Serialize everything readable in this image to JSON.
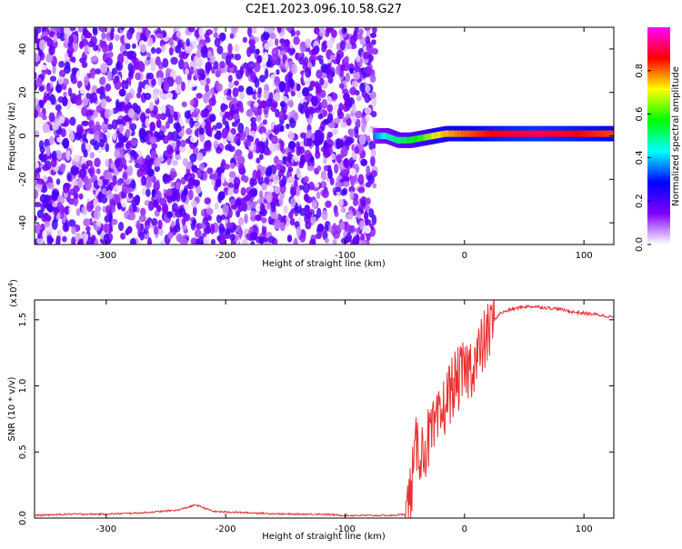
{
  "title": "C2E1.2023.096.10.58.G27",
  "chart_data": [
    {
      "type": "heatmap",
      "xlabel": "Height of straight line (km)",
      "ylabel": "Frequency (Hz)",
      "xlim": [
        -360,
        125
      ],
      "ylim": [
        -50,
        50
      ],
      "x_ticks": [
        -300,
        -200,
        -100,
        0,
        100
      ],
      "y_ticks": [
        -40,
        -20,
        0,
        20,
        40
      ],
      "colorbar": {
        "label": "Normalized spectral amplitude",
        "range": [
          0.0,
          1.0
        ],
        "ticks": [
          0.0,
          0.2,
          0.4,
          0.6,
          0.8
        ],
        "colors": [
          "#ffffff",
          "#8000ff",
          "#0000ff",
          "#00ffff",
          "#00ff00",
          "#ffff00",
          "#ff0000",
          "#ff00ff"
        ]
      },
      "features": {
        "noise_region_x": [
          -360,
          -75
        ],
        "signal_region_x": [
          -75,
          125
        ],
        "signal_trace": [
          {
            "x": -75,
            "y": 0,
            "amp": 0.35
          },
          {
            "x": -65,
            "y": 0,
            "amp": 0.45
          },
          {
            "x": -55,
            "y": -2,
            "amp": 0.5
          },
          {
            "x": -45,
            "y": -2,
            "amp": 0.55
          },
          {
            "x": -35,
            "y": -1,
            "amp": 0.6
          },
          {
            "x": -25,
            "y": 0,
            "amp": 0.7
          },
          {
            "x": -15,
            "y": 1,
            "amp": 0.75
          },
          {
            "x": 0,
            "y": 1,
            "amp": 0.8
          },
          {
            "x": 20,
            "y": 1,
            "amp": 0.85
          },
          {
            "x": 40,
            "y": 1,
            "amp": 0.88
          },
          {
            "x": 60,
            "y": 1,
            "amp": 0.9
          },
          {
            "x": 80,
            "y": 1,
            "amp": 0.88
          },
          {
            "x": 100,
            "y": 1,
            "amp": 0.85
          },
          {
            "x": 125,
            "y": 1,
            "amp": 0.82
          }
        ]
      }
    },
    {
      "type": "line",
      "xlabel": "Height of straight line (km)",
      "ylabel": "SNR (10 * v/v)",
      "y_multiplier": "(x10",
      "y_multiplier_exp": "4",
      "y_multiplier_close": ")",
      "xlim": [
        -360,
        125
      ],
      "ylim": [
        0,
        1.65
      ],
      "x_ticks": [
        -300,
        -200,
        -100,
        0,
        100
      ],
      "y_ticks": [
        0.0,
        0.5,
        1.0,
        1.5
      ],
      "y_tick_labels": [
        "0.0",
        "0.5",
        "1.0",
        "1.5"
      ],
      "series": [
        {
          "color": "#e83030",
          "x": [
            -360,
            -330,
            -300,
            -270,
            -240,
            -225,
            -210,
            -180,
            -150,
            -120,
            -100,
            -80,
            -60,
            -50,
            -45,
            -40,
            -35,
            -30,
            -25,
            -20,
            -15,
            -10,
            -5,
            0,
            5,
            10,
            15,
            20,
            25,
            30,
            40,
            50,
            60,
            70,
            80,
            90,
            100,
            110,
            125
          ],
          "values": [
            0.02,
            0.03,
            0.03,
            0.04,
            0.06,
            0.1,
            0.05,
            0.04,
            0.03,
            0.03,
            0.02,
            0.02,
            0.02,
            0.03,
            0.2,
            0.55,
            0.5,
            0.6,
            0.65,
            0.75,
            0.9,
            1.0,
            1.05,
            1.1,
            1.15,
            1.2,
            1.3,
            1.4,
            1.5,
            1.55,
            1.58,
            1.6,
            1.6,
            1.59,
            1.58,
            1.56,
            1.55,
            1.54,
            1.52
          ]
        }
      ]
    }
  ]
}
